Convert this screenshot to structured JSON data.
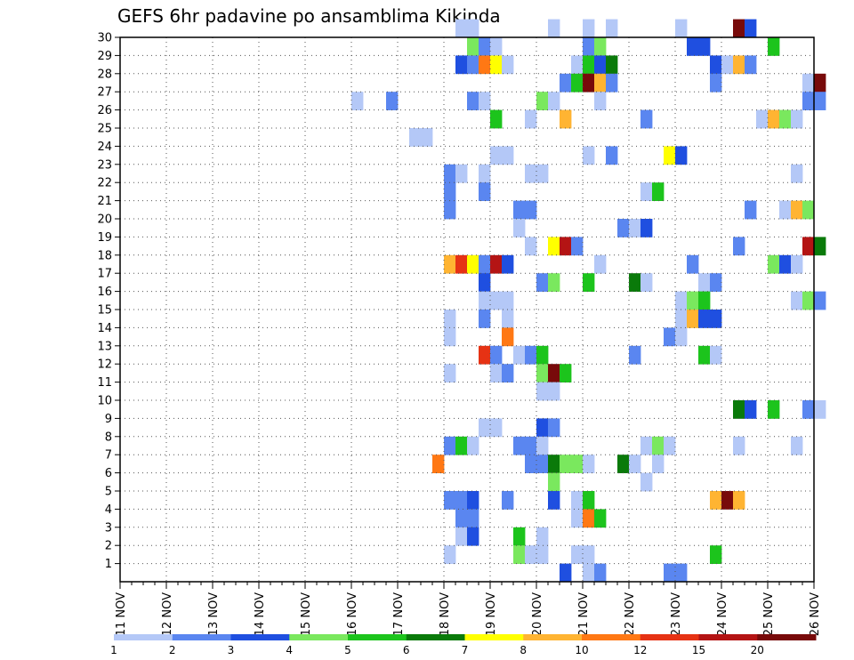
{
  "chart_data": {
    "type": "heatmap",
    "title": "GEFS 6hr padavine po ansamblima Kikinda",
    "x_labels": [
      "11 NOV",
      "12 NOV",
      "13 NOV",
      "14 NOV",
      "15 NOV",
      "16 NOV",
      "17 NOV",
      "18 NOV",
      "19 NOV",
      "20 NOV",
      "21 NOV",
      "22 NOV",
      "23 NOV",
      "24 NOV",
      "25 NOV",
      "26 NOV"
    ],
    "y_labels": [
      "1",
      "2",
      "3",
      "4",
      "5",
      "6",
      "7",
      "8",
      "9",
      "10",
      "11",
      "12",
      "13",
      "14",
      "15",
      "16",
      "17",
      "18",
      "19",
      "20",
      "21",
      "22",
      "23",
      "24",
      "25",
      "26",
      "27",
      "28",
      "29",
      "30"
    ],
    "x_range_days": [
      11,
      26
    ],
    "steps_per_day": 4,
    "y_range": [
      0,
      30
    ],
    "grid": true,
    "legend": {
      "placement": "bottom",
      "labels": [
        "1",
        "2",
        "3",
        "4",
        "5",
        "6",
        "7",
        "8",
        "10",
        "12",
        "15",
        "20"
      ],
      "colors": [
        "#b4c8f7",
        "#5a86f0",
        "#1f4fe0",
        "#7ae85e",
        "#1cc41c",
        "#0a7a0a",
        "#ffff00",
        "#ffb432",
        "#ff7814",
        "#e63214",
        "#b41414",
        "#780a0a"
      ]
    },
    "cells_legend": "each cell is [time_step_from_11_NOV_00UTC, member, class_index]",
    "cells": [
      [
        29,
        30,
        0
      ],
      [
        30,
        30,
        0
      ],
      [
        37,
        30,
        0
      ],
      [
        40,
        30,
        0
      ],
      [
        42,
        30,
        0
      ],
      [
        48,
        30,
        0
      ],
      [
        53,
        30,
        11
      ],
      [
        54,
        30,
        2
      ],
      [
        30,
        29,
        3
      ],
      [
        31,
        29,
        1
      ],
      [
        32,
        29,
        0
      ],
      [
        40,
        29,
        1
      ],
      [
        41,
        29,
        3
      ],
      [
        49,
        29,
        2
      ],
      [
        50,
        29,
        2
      ],
      [
        56,
        29,
        4
      ],
      [
        29,
        28,
        2
      ],
      [
        30,
        28,
        1
      ],
      [
        31,
        28,
        8
      ],
      [
        32,
        28,
        6
      ],
      [
        33,
        28,
        0
      ],
      [
        39,
        28,
        0
      ],
      [
        40,
        28,
        4
      ],
      [
        41,
        28,
        2
      ],
      [
        42,
        28,
        5
      ],
      [
        51,
        28,
        2
      ],
      [
        52,
        28,
        0
      ],
      [
        53,
        28,
        7
      ],
      [
        54,
        28,
        1
      ],
      [
        38,
        27,
        1
      ],
      [
        39,
        27,
        4
      ],
      [
        40,
        27,
        11
      ],
      [
        41,
        27,
        7
      ],
      [
        42,
        27,
        1
      ],
      [
        51,
        27,
        1
      ],
      [
        59,
        27,
        0
      ],
      [
        60,
        27,
        11
      ],
      [
        20,
        26,
        0
      ],
      [
        23,
        26,
        1
      ],
      [
        30,
        26,
        1
      ],
      [
        31,
        26,
        0
      ],
      [
        36,
        26,
        3
      ],
      [
        37,
        26,
        0
      ],
      [
        41,
        26,
        0
      ],
      [
        59,
        26,
        1
      ],
      [
        60,
        26,
        1
      ],
      [
        32,
        25,
        4
      ],
      [
        35,
        25,
        0
      ],
      [
        38,
        25,
        7
      ],
      [
        45,
        25,
        1
      ],
      [
        55,
        25,
        0
      ],
      [
        56,
        25,
        7
      ],
      [
        57,
        25,
        3
      ],
      [
        58,
        25,
        0
      ],
      [
        25,
        24,
        0
      ],
      [
        26,
        24,
        0
      ],
      [
        32,
        23,
        0
      ],
      [
        33,
        23,
        0
      ],
      [
        40,
        23,
        0
      ],
      [
        42,
        23,
        1
      ],
      [
        47,
        23,
        6
      ],
      [
        48,
        23,
        2
      ],
      [
        28,
        22,
        1
      ],
      [
        29,
        22,
        0
      ],
      [
        31,
        22,
        0
      ],
      [
        35,
        22,
        0
      ],
      [
        36,
        22,
        0
      ],
      [
        58,
        22,
        0
      ],
      [
        28,
        21,
        1
      ],
      [
        31,
        21,
        1
      ],
      [
        45,
        21,
        0
      ],
      [
        46,
        21,
        4
      ],
      [
        28,
        20,
        1
      ],
      [
        34,
        20,
        1
      ],
      [
        35,
        20,
        1
      ],
      [
        54,
        20,
        1
      ],
      [
        57,
        20,
        0
      ],
      [
        58,
        20,
        7
      ],
      [
        59,
        20,
        3
      ],
      [
        34,
        19,
        0
      ],
      [
        43,
        19,
        1
      ],
      [
        44,
        19,
        0
      ],
      [
        45,
        19,
        2
      ],
      [
        35,
        18,
        0
      ],
      [
        37,
        18,
        6
      ],
      [
        38,
        18,
        10
      ],
      [
        39,
        18,
        1
      ],
      [
        53,
        18,
        1
      ],
      [
        59,
        18,
        10
      ],
      [
        60,
        18,
        5
      ],
      [
        28,
        17,
        7
      ],
      [
        29,
        17,
        9
      ],
      [
        30,
        17,
        6
      ],
      [
        31,
        17,
        1
      ],
      [
        32,
        17,
        10
      ],
      [
        33,
        17,
        2
      ],
      [
        41,
        17,
        0
      ],
      [
        49,
        17,
        1
      ],
      [
        56,
        17,
        3
      ],
      [
        57,
        17,
        2
      ],
      [
        58,
        17,
        0
      ],
      [
        31,
        16,
        2
      ],
      [
        36,
        16,
        1
      ],
      [
        37,
        16,
        3
      ],
      [
        40,
        16,
        4
      ],
      [
        44,
        16,
        5
      ],
      [
        45,
        16,
        0
      ],
      [
        50,
        16,
        0
      ],
      [
        51,
        16,
        1
      ],
      [
        32,
        15,
        0
      ],
      [
        33,
        15,
        0
      ],
      [
        31,
        15,
        0
      ],
      [
        48,
        15,
        0
      ],
      [
        49,
        15,
        3
      ],
      [
        50,
        15,
        4
      ],
      [
        58,
        15,
        0
      ],
      [
        59,
        15,
        3
      ],
      [
        60,
        15,
        1
      ],
      [
        28,
        14,
        0
      ],
      [
        31,
        14,
        1
      ],
      [
        33,
        14,
        0
      ],
      [
        48,
        14,
        0
      ],
      [
        49,
        14,
        7
      ],
      [
        50,
        14,
        2
      ],
      [
        51,
        14,
        2
      ],
      [
        28,
        13,
        0
      ],
      [
        33,
        13,
        8
      ],
      [
        47,
        13,
        1
      ],
      [
        48,
        13,
        0
      ],
      [
        31,
        12,
        9
      ],
      [
        32,
        12,
        1
      ],
      [
        34,
        12,
        0
      ],
      [
        35,
        12,
        1
      ],
      [
        36,
        12,
        4
      ],
      [
        44,
        12,
        1
      ],
      [
        50,
        12,
        4
      ],
      [
        51,
        12,
        0
      ],
      [
        28,
        11,
        0
      ],
      [
        32,
        11,
        0
      ],
      [
        33,
        11,
        1
      ],
      [
        36,
        11,
        3
      ],
      [
        37,
        11,
        11
      ],
      [
        38,
        11,
        4
      ],
      [
        36,
        10,
        0
      ],
      [
        37,
        10,
        0
      ],
      [
        53,
        9,
        5
      ],
      [
        54,
        9,
        2
      ],
      [
        56,
        9,
        4
      ],
      [
        59,
        9,
        1
      ],
      [
        60,
        9,
        0
      ],
      [
        31,
        8,
        0
      ],
      [
        32,
        8,
        0
      ],
      [
        36,
        8,
        2
      ],
      [
        37,
        8,
        1
      ],
      [
        28,
        7,
        1
      ],
      [
        29,
        7,
        4
      ],
      [
        30,
        7,
        0
      ],
      [
        34,
        7,
        1
      ],
      [
        35,
        7,
        1
      ],
      [
        36,
        7,
        0
      ],
      [
        45,
        7,
        0
      ],
      [
        46,
        7,
        3
      ],
      [
        47,
        7,
        0
      ],
      [
        53,
        7,
        0
      ],
      [
        58,
        7,
        0
      ],
      [
        27,
        6,
        8
      ],
      [
        35,
        6,
        1
      ],
      [
        36,
        6,
        1
      ],
      [
        37,
        6,
        5
      ],
      [
        38,
        6,
        3
      ],
      [
        39,
        6,
        3
      ],
      [
        40,
        6,
        0
      ],
      [
        43,
        6,
        5
      ],
      [
        44,
        6,
        0
      ],
      [
        46,
        6,
        0
      ],
      [
        37,
        5,
        3
      ],
      [
        45,
        5,
        0
      ],
      [
        28,
        4,
        1
      ],
      [
        29,
        4,
        1
      ],
      [
        30,
        4,
        2
      ],
      [
        33,
        4,
        1
      ],
      [
        37,
        4,
        2
      ],
      [
        39,
        4,
        0
      ],
      [
        40,
        4,
        4
      ],
      [
        51,
        4,
        7
      ],
      [
        52,
        4,
        11
      ],
      [
        53,
        4,
        7
      ],
      [
        29,
        3,
        1
      ],
      [
        30,
        3,
        1
      ],
      [
        39,
        3,
        0
      ],
      [
        40,
        3,
        8
      ],
      [
        41,
        3,
        4
      ],
      [
        29,
        2,
        0
      ],
      [
        30,
        2,
        2
      ],
      [
        34,
        2,
        4
      ],
      [
        36,
        2,
        0
      ],
      [
        28,
        1,
        0
      ],
      [
        34,
        1,
        3
      ],
      [
        35,
        1,
        0
      ],
      [
        36,
        1,
        0
      ],
      [
        39,
        1,
        0
      ],
      [
        40,
        1,
        0
      ],
      [
        51,
        1,
        4
      ],
      [
        38,
        0,
        2
      ],
      [
        40,
        0,
        0
      ],
      [
        41,
        0,
        1
      ],
      [
        47,
        0,
        1
      ],
      [
        48,
        0,
        1
      ]
    ]
  }
}
